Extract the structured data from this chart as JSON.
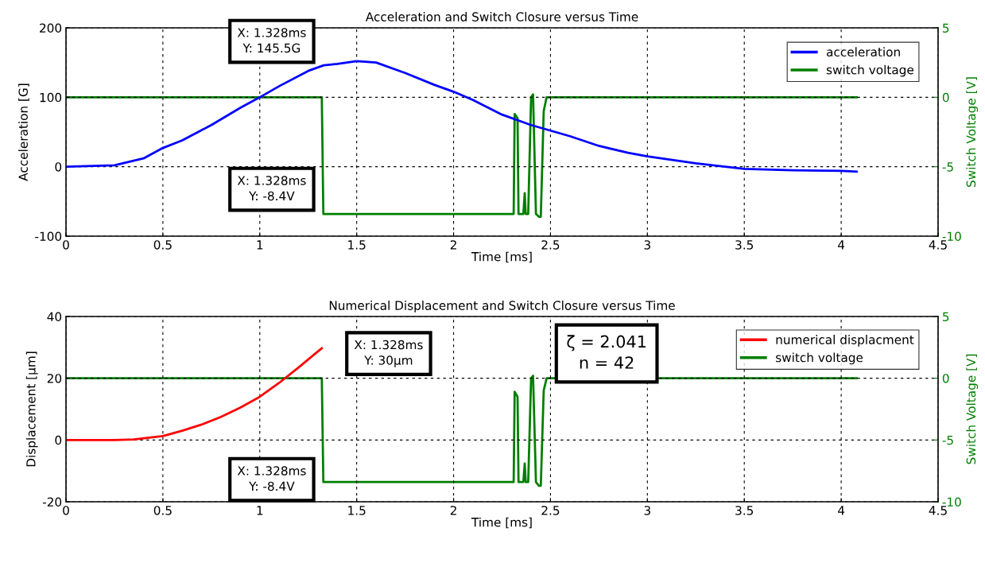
{
  "chart_data": [
    {
      "type": "line",
      "title": "Acceleration and Switch Closure versus Time",
      "xlabel": "Time [ms]",
      "ylabel": "Acceleration [G]",
      "y2label": "Switch Voltage [V]",
      "xlim": [
        0,
        4.5
      ],
      "xticks": [
        0,
        0.5,
        1,
        1.5,
        2,
        2.5,
        3,
        3.5,
        4,
        4.5
      ],
      "ylim": [
        -100,
        200
      ],
      "yticks": [
        -100,
        0,
        100,
        200
      ],
      "y2lim": [
        -10,
        5
      ],
      "y2ticks": [
        -10,
        -5,
        0,
        5
      ],
      "grid": true,
      "legend": "top right",
      "series": [
        {
          "name": "acceleration",
          "color": "#0000ff",
          "x": [
            0,
            0.25,
            0.4,
            0.5,
            0.6,
            0.75,
            0.9,
            1.0,
            1.1,
            1.25,
            1.33,
            1.4,
            1.5,
            1.6,
            1.75,
            1.9,
            2.0,
            2.1,
            2.25,
            2.4,
            2.5,
            2.6,
            2.75,
            2.9,
            3.0,
            3.25,
            3.5,
            3.75,
            4.0,
            4.08
          ],
          "values": [
            0,
            2,
            12,
            27,
            38,
            60,
            85,
            100,
            116,
            138,
            146,
            148,
            152,
            150,
            135,
            118,
            108,
            96,
            75,
            60,
            52,
            44,
            30,
            20,
            15,
            5,
            -3,
            -5,
            -6,
            -7
          ]
        },
        {
          "name": "switch voltage",
          "color": "#007f00",
          "axis": "y2",
          "x": [
            0,
            1.32,
            1.328,
            2.31,
            2.315,
            2.33,
            2.335,
            2.36,
            2.367,
            2.372,
            2.385,
            2.4,
            2.41,
            2.425,
            2.44,
            2.45,
            2.465,
            2.48,
            2.52,
            4.08
          ],
          "values": [
            0,
            0,
            -8.4,
            -8.4,
            -1.2,
            -1.5,
            -8.4,
            -8.4,
            -6.9,
            -8.4,
            -8.4,
            0,
            0.2,
            -8.4,
            -8.6,
            -8.6,
            -1,
            0,
            0,
            0
          ]
        }
      ],
      "annotations": [
        "X: 1.328ms\nY: 145.5G",
        "X: 1.328ms\nY: -8.4V"
      ]
    },
    {
      "type": "line",
      "title": "Numerical Displacement and Switch Closure versus Time",
      "xlabel": "Time [ms]",
      "ylabel": "Displacement [μm]",
      "y2label": "Switch Voltage [V]",
      "xlim": [
        0,
        4.5
      ],
      "xticks": [
        0,
        0.5,
        1,
        1.5,
        2,
        2.5,
        3,
        3.5,
        4,
        4.5
      ],
      "ylim": [
        -20,
        40
      ],
      "yticks": [
        -20,
        0,
        20,
        40
      ],
      "y2lim": [
        -10,
        5
      ],
      "y2ticks": [
        -10,
        -5,
        0,
        5
      ],
      "grid": true,
      "legend": "top right",
      "series": [
        {
          "name": "numerical displacment",
          "color": "#ff0000",
          "x": [
            0,
            0.25,
            0.35,
            0.5,
            0.6,
            0.7,
            0.8,
            0.9,
            1.0,
            1.1,
            1.2,
            1.3,
            1.32
          ],
          "values": [
            0,
            0,
            0.2,
            1.3,
            3,
            5,
            7.5,
            10.5,
            14,
            18.5,
            23.5,
            28.7,
            29.7
          ]
        },
        {
          "name": "switch voltage",
          "color": "#007f00",
          "axis": "y2",
          "x": [
            0,
            1.32,
            1.328,
            2.31,
            2.315,
            2.33,
            2.335,
            2.36,
            2.367,
            2.372,
            2.385,
            2.4,
            2.41,
            2.425,
            2.44,
            2.45,
            2.465,
            2.48,
            2.52,
            4.08
          ],
          "values": [
            0,
            0,
            -8.4,
            -8.4,
            -1.1,
            -1.5,
            -8.4,
            -8.4,
            -6.9,
            -8.4,
            -8.4,
            0,
            0.2,
            -8.4,
            -8.7,
            -8.7,
            -1,
            0,
            0,
            0
          ]
        }
      ],
      "annotations": [
        "X: 1.328ms\nY: 30μm",
        "X: 1.328ms\nY: -8.4V",
        "ζ = 2.041\nn = 42"
      ]
    }
  ]
}
